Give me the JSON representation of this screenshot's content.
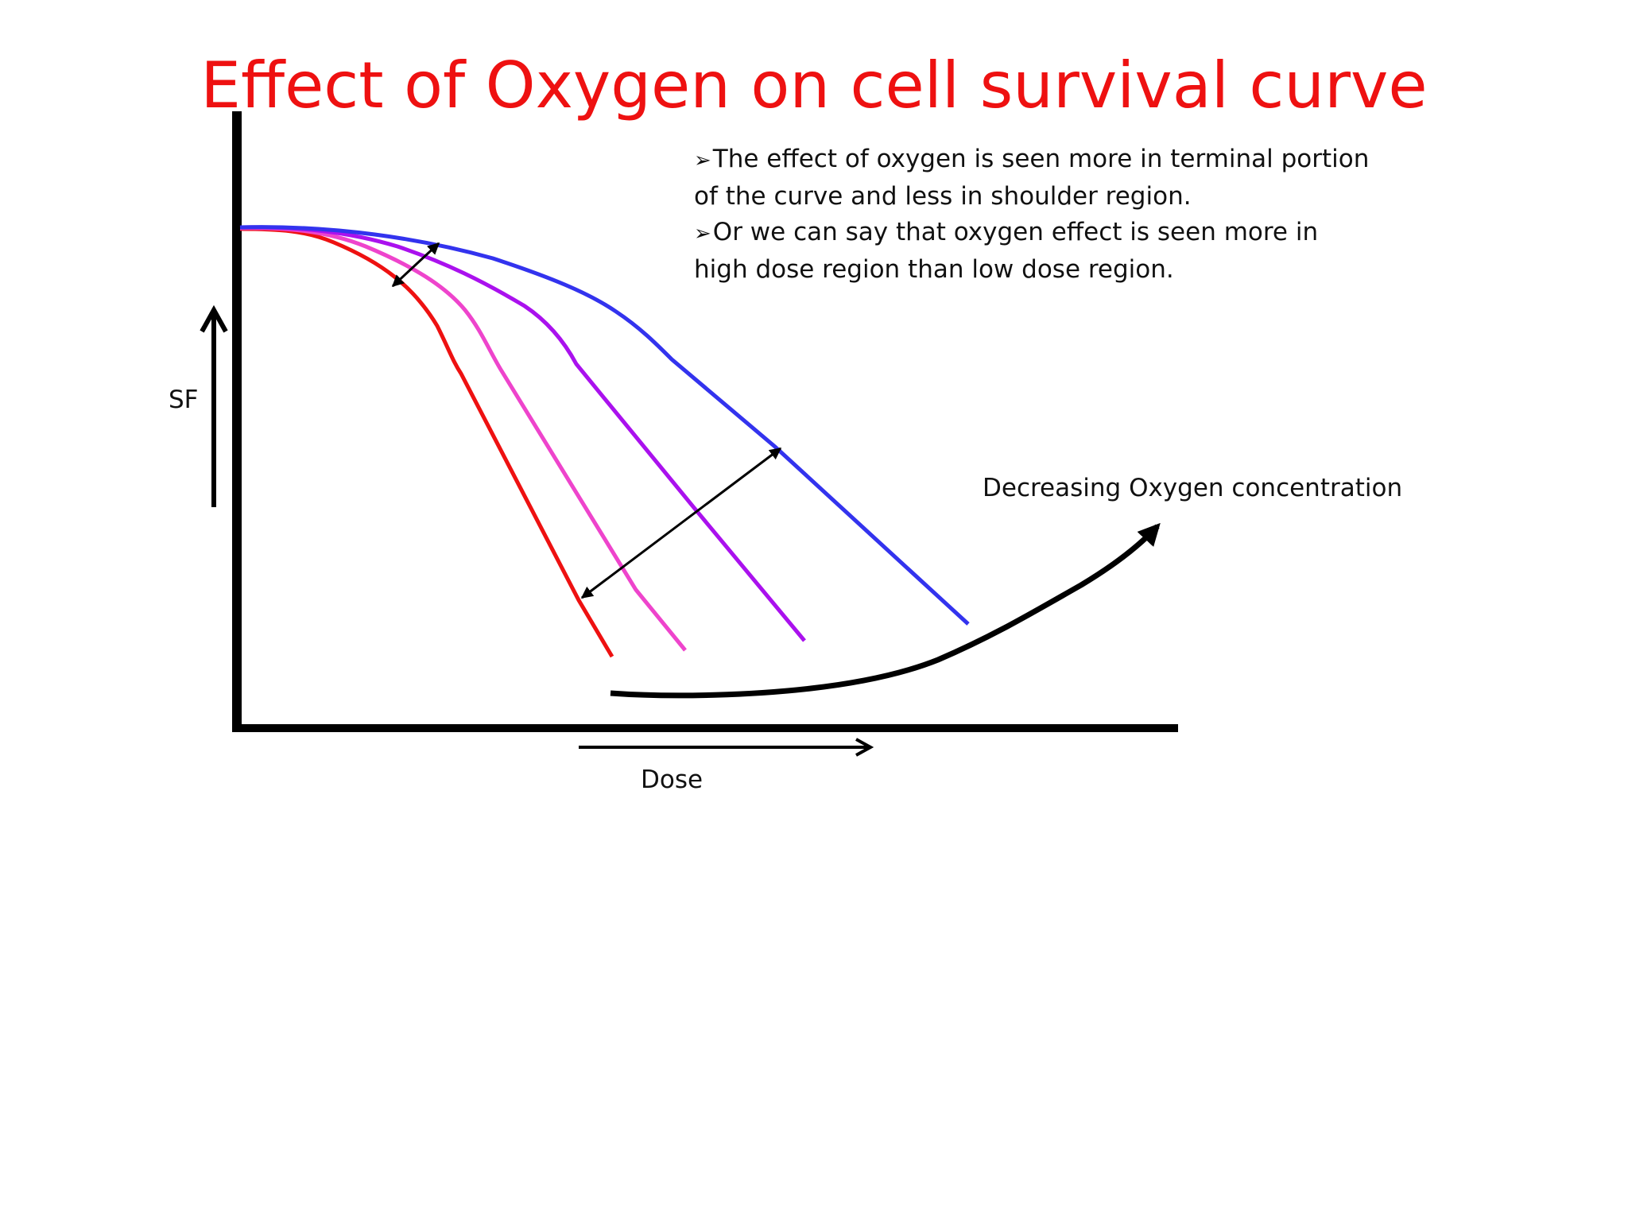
{
  "slide": {
    "title": "Effect of Oxygen on cell survival curve",
    "title_color": "#ee1111"
  },
  "bullets": [
    {
      "marker": "➢",
      "text": "The effect of oxygen is seen more in terminal  portion of the curve and less in shoulder region."
    },
    {
      "marker": "➢",
      "text": "Or we can say that oxygen effect is seen more in  high dose region than low dose region."
    }
  ],
  "diagram": {
    "y_axis_label": "SF",
    "x_axis_label": "Dose",
    "oxygen_arrow_label": "Decreasing Oxygen concentration",
    "curves": [
      {
        "id": "curve-1",
        "color": "#ee1111"
      },
      {
        "id": "curve-2",
        "color": "#ee44cc"
      },
      {
        "id": "curve-3",
        "color": "#aa11ee"
      },
      {
        "id": "curve-4",
        "color": "#3333ee"
      }
    ]
  }
}
